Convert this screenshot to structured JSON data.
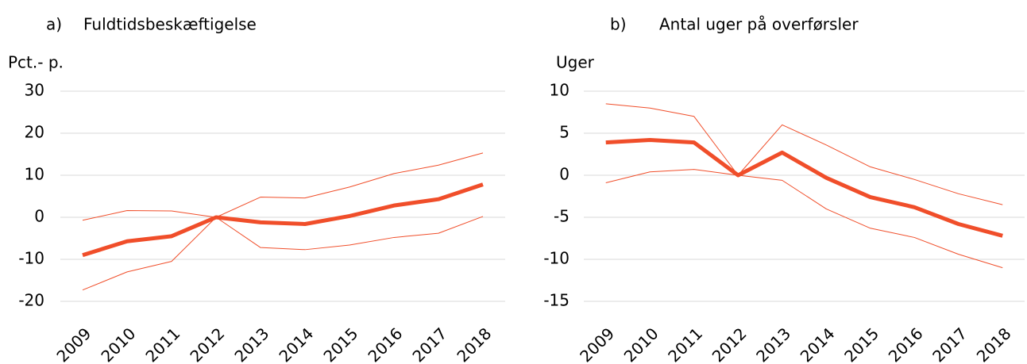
{
  "chart_data": [
    {
      "type": "line",
      "panel_label": "a)",
      "title": "Fuldtidsbeskæftigelse",
      "y_label": "Pct.- p.",
      "categories": [
        "2009",
        "2010",
        "2011",
        "2012",
        "2013",
        "2014",
        "2015",
        "2016",
        "2017",
        "2018"
      ],
      "ylim": [
        -20,
        30
      ],
      "yticks": [
        -20,
        -10,
        0,
        10,
        20,
        30
      ],
      "grid": true,
      "series": [
        {
          "color": "#f04e2a",
          "width": 5,
          "values": [
            -9,
            -5.7,
            -4.5,
            0,
            -1.2,
            -1.6,
            0.3,
            2.8,
            4.3,
            7.8
          ]
        },
        {
          "color": "#f04e2a",
          "width": 1,
          "values": [
            -0.7,
            1.6,
            1.5,
            0,
            4.8,
            4.6,
            7.2,
            10.4,
            12.4,
            15.3
          ]
        },
        {
          "color": "#f04e2a",
          "width": 1,
          "values": [
            -17.3,
            -13,
            -10.5,
            0,
            -7.2,
            -7.7,
            -6.6,
            -4.8,
            -3.8,
            0.2
          ]
        }
      ]
    },
    {
      "type": "line",
      "panel_label": "b)",
      "title": "Antal uger på overførsler",
      "y_label": "Uger",
      "categories": [
        "2009",
        "2010",
        "2011",
        "2012",
        "2013",
        "2014",
        "2015",
        "2016",
        "2017",
        "2018"
      ],
      "ylim": [
        -15,
        10
      ],
      "yticks": [
        -15,
        -10,
        -5,
        0,
        5,
        10
      ],
      "grid": true,
      "series": [
        {
          "color": "#f04e2a",
          "width": 5,
          "values": [
            3.9,
            4.2,
            3.9,
            0,
            2.7,
            -0.3,
            -2.6,
            -3.8,
            -5.8,
            -7.2
          ]
        },
        {
          "color": "#f04e2a",
          "width": 1,
          "values": [
            8.5,
            8,
            7,
            0,
            6,
            3.6,
            1,
            -0.5,
            -2.2,
            -3.5
          ]
        },
        {
          "color": "#f04e2a",
          "width": 1,
          "values": [
            -0.9,
            0.4,
            0.7,
            0,
            -0.6,
            -4,
            -6.3,
            -7.4,
            -9.4,
            -11
          ]
        }
      ]
    }
  ]
}
